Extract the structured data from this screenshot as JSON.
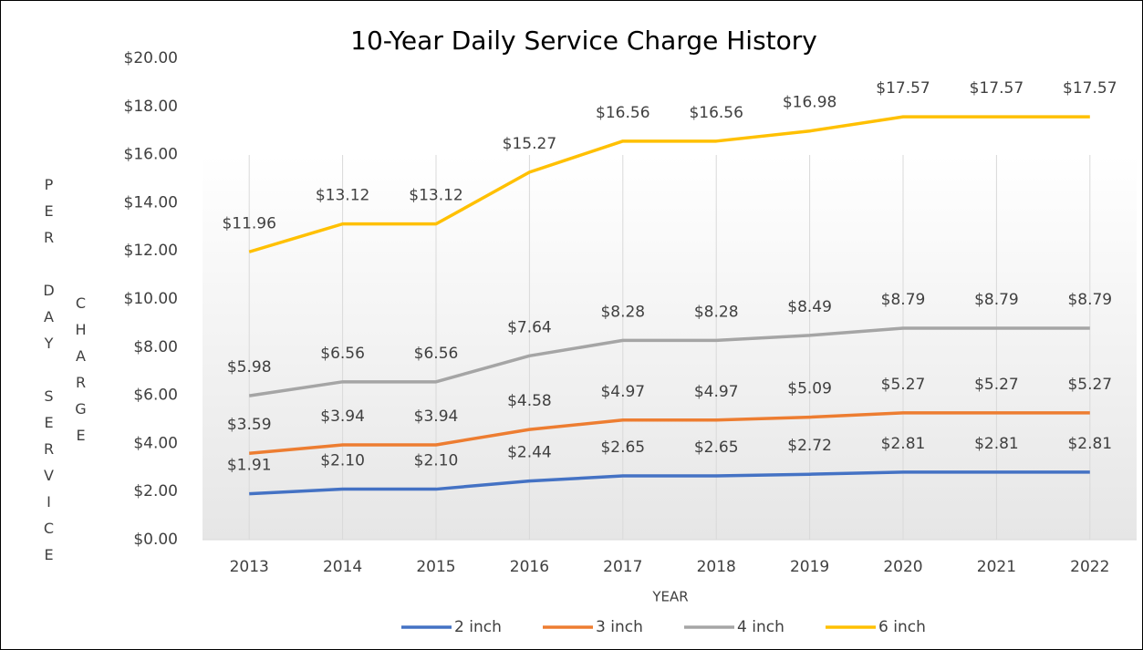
{
  "chart_data": {
    "type": "line",
    "title": "10-Year Daily Service Charge History",
    "xlabel": "YEAR",
    "ylabel": "PER DAY SERVICE CHARGE",
    "categories": [
      "2013",
      "2014",
      "2015",
      "2016",
      "2017",
      "2018",
      "2019",
      "2020",
      "2021",
      "2022"
    ],
    "series": [
      {
        "name": "2 inch",
        "color": "#4472c4",
        "values": [
          1.91,
          2.1,
          2.1,
          2.44,
          2.65,
          2.65,
          2.72,
          2.81,
          2.81,
          2.81
        ],
        "value_labels": [
          "$1.91",
          "$2.10",
          "$2.10",
          "$2.44",
          "$2.65",
          "$2.65",
          "$2.72",
          "$2.81",
          "$2.81",
          "$2.81"
        ]
      },
      {
        "name": "3 inch",
        "color": "#ed7d31",
        "values": [
          3.59,
          3.94,
          3.94,
          4.58,
          4.97,
          4.97,
          5.09,
          5.27,
          5.27,
          5.27
        ],
        "value_labels": [
          "$3.59",
          "$3.94",
          "$3.94",
          "$4.58",
          "$4.97",
          "$4.97",
          "$5.09",
          "$5.27",
          "$5.27",
          "$5.27"
        ]
      },
      {
        "name": "4 inch",
        "color": "#a5a5a5",
        "values": [
          5.98,
          6.56,
          6.56,
          7.64,
          8.28,
          8.28,
          8.49,
          8.79,
          8.79,
          8.79
        ],
        "value_labels": [
          "$5.98",
          "$6.56",
          "$6.56",
          "$7.64",
          "$8.28",
          "$8.28",
          "$8.49",
          "$8.79",
          "$8.79",
          "$8.79"
        ]
      },
      {
        "name": "6 inch",
        "color": "#ffc000",
        "values": [
          11.96,
          13.12,
          13.12,
          15.27,
          16.56,
          16.56,
          16.98,
          17.57,
          17.57,
          17.57
        ],
        "value_labels": [
          "$11.96",
          "$13.12",
          "$13.12",
          "$15.27",
          "$16.56",
          "$16.56",
          "$16.98",
          "$17.57",
          "$17.57",
          "$17.57"
        ]
      }
    ],
    "ylim": [
      0,
      20
    ],
    "yticks": [
      {
        "value": 0,
        "label": "$0.00"
      },
      {
        "value": 2,
        "label": "$2.00"
      },
      {
        "value": 4,
        "label": "$4.00"
      },
      {
        "value": 6,
        "label": "$6.00"
      },
      {
        "value": 8,
        "label": "$8.00"
      },
      {
        "value": 10,
        "label": "$10.00"
      },
      {
        "value": 12,
        "label": "$12.00"
      },
      {
        "value": 14,
        "label": "$14.00"
      },
      {
        "value": 16,
        "label": "$16.00"
      },
      {
        "value": 18,
        "label": "$18.00"
      },
      {
        "value": 20,
        "label": "$20.00"
      }
    ],
    "legend": "bottom"
  }
}
